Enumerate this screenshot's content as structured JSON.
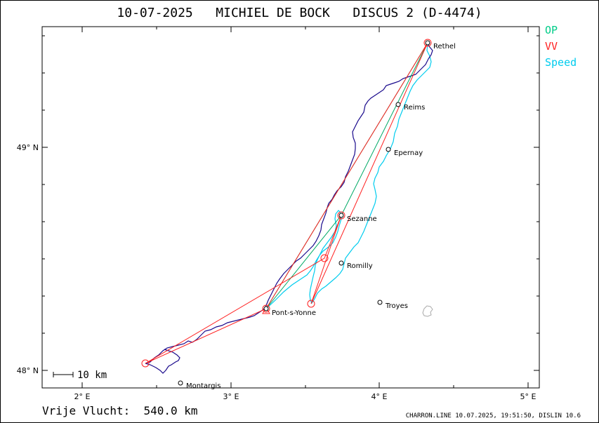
{
  "header": {
    "date": "10-07-2025",
    "pilot": "MICHIEL DE BOCK",
    "glider": "DISCUS 2 (D-4474)"
  },
  "legend": [
    {
      "label": "OP",
      "color": "#00cc88"
    },
    {
      "label": "VV",
      "color": "#ff2020"
    },
    {
      "label": "Speed",
      "color": "#00ccee"
    }
  ],
  "axes": {
    "x_ticks": [
      "2° E",
      "3° E",
      "4° E",
      "5° E"
    ],
    "y_ticks": [
      "49° N",
      "48° N"
    ]
  },
  "scale_bar": "10 km",
  "places": [
    {
      "name": "Rethel",
      "lon": 4.35,
      "lat": 49.5
    },
    {
      "name": "Reims",
      "lon": 4.13,
      "lat": 49.19
    },
    {
      "name": "Epernay",
      "lon": 4.07,
      "lat": 48.98
    },
    {
      "name": "Sezanne",
      "lon": 3.73,
      "lat": 48.67
    },
    {
      "name": "Romilly",
      "lon": 3.74,
      "lat": 48.48
    },
    {
      "name": "Troyes",
      "lon": 4.02,
      "lat": 48.31
    },
    {
      "name": "Pont-s-Yonne",
      "lon": 3.23,
      "lat": 48.28
    },
    {
      "name": "Montargis",
      "lon": 2.67,
      "lat": 47.94
    }
  ],
  "turnpoints": [
    {
      "lon": 2.43,
      "lat": 48.03
    },
    {
      "lon": 3.23,
      "lat": 48.28
    },
    {
      "lon": 4.35,
      "lat": 49.5
    },
    {
      "lon": 3.54,
      "lat": 48.3
    },
    {
      "lon": 3.73,
      "lat": 48.67
    },
    {
      "lon": 3.63,
      "lat": 48.5
    }
  ],
  "footer": {
    "distance_label": "Vrije Vlucht:",
    "distance_value": "540.0 km",
    "credits": "CHARRON.LINE 10.07.2025, 19:51:50, DISLIN 10.6"
  }
}
